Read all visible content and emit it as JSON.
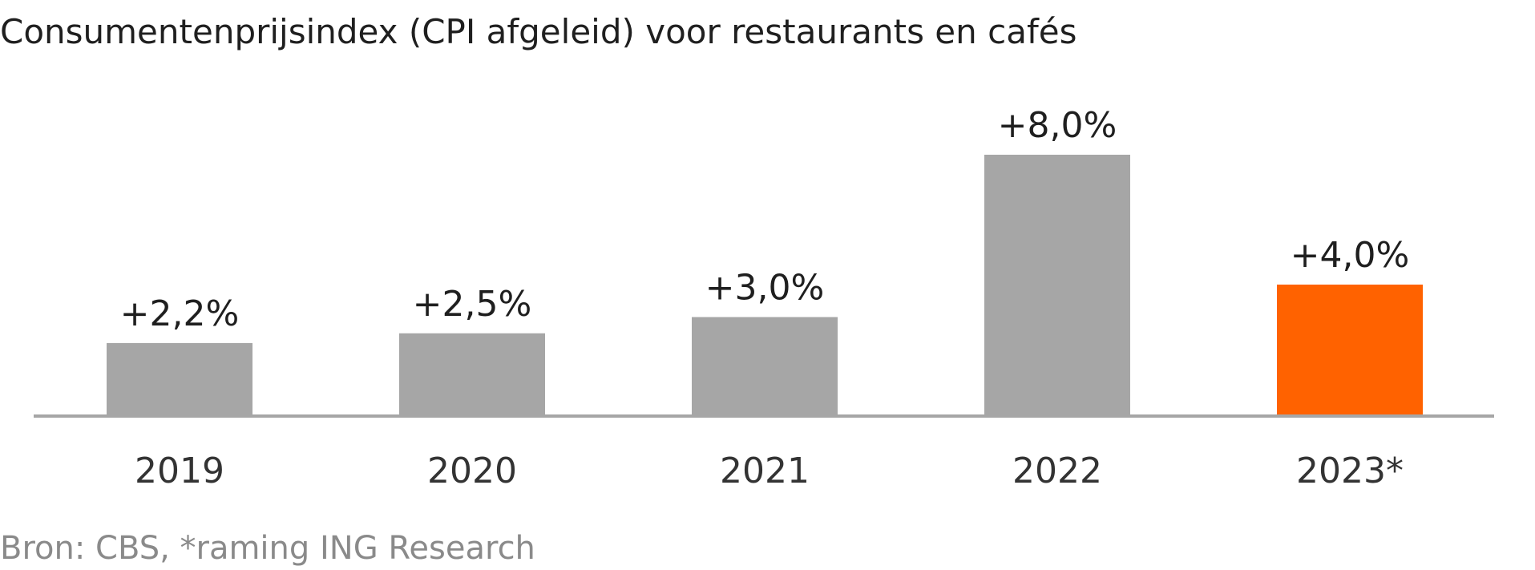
{
  "chart_data": {
    "type": "bar",
    "title": "Consumentenprijsindex (CPI afgeleid) voor restaurants en cafés",
    "categories": [
      "2019",
      "2020",
      "2021",
      "2022",
      "2023*"
    ],
    "values": [
      2.2,
      2.5,
      3.0,
      8.0,
      4.0
    ],
    "value_labels": [
      "+2,2%",
      "+2,5%",
      "+3,0%",
      "+8,0%",
      "+4,0%"
    ],
    "bar_colors": [
      "#a6a6a6",
      "#a6a6a6",
      "#a6a6a6",
      "#a6a6a6",
      "#ff6200"
    ],
    "axis_color": "#a6a6a6",
    "ylim": [
      0,
      8
    ],
    "grid": false,
    "legend": "none",
    "source": "Bron: CBS, *raming ING Research"
  }
}
